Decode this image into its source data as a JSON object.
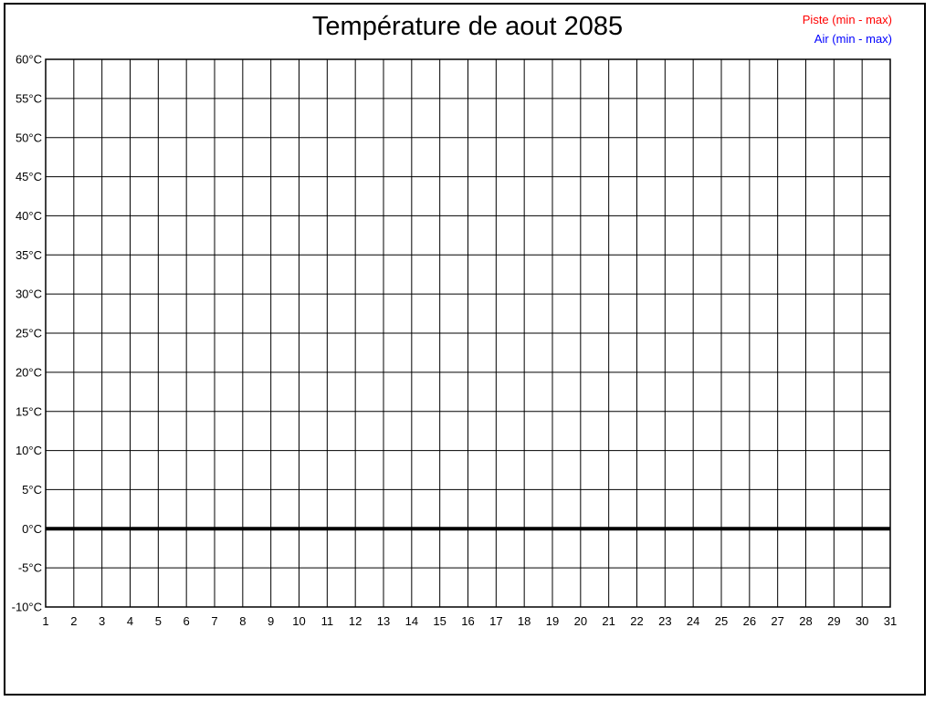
{
  "page": {
    "background": "#ffffff",
    "frame_color": "#000000"
  },
  "chart_data": {
    "type": "bar",
    "variant": "daily min-max range chart, currently empty (no data bars plotted)",
    "title": "Température de aout 2085",
    "categories": [
      "1",
      "2",
      "3",
      "4",
      "5",
      "6",
      "7",
      "8",
      "9",
      "10",
      "11",
      "12",
      "13",
      "14",
      "15",
      "16",
      "17",
      "18",
      "19",
      "20",
      "21",
      "22",
      "23",
      "24",
      "25",
      "26",
      "27",
      "28",
      "29",
      "30",
      "31"
    ],
    "series": [
      {
        "name": "Piste (min - max)",
        "color": "#ff0000",
        "values": []
      },
      {
        "name": "Air (min - max)",
        "color": "#0000ff",
        "values": []
      }
    ],
    "xlabel": "",
    "ylabel": "",
    "ylim": [
      -10,
      60
    ],
    "ytick_step": 5,
    "ytick_labels": [
      "60°C",
      "55°C",
      "50°C",
      "45°C",
      "40°C",
      "35°C",
      "30°C",
      "25°C",
      "20°C",
      "15°C",
      "10°C",
      "5°C",
      "0°C",
      "-5°C",
      "-10°C"
    ],
    "grid": true,
    "grid_color": "#000000",
    "zero_line": {
      "value": 0,
      "color": "#000000",
      "thickness": 4
    },
    "legend_position": "top-right"
  }
}
